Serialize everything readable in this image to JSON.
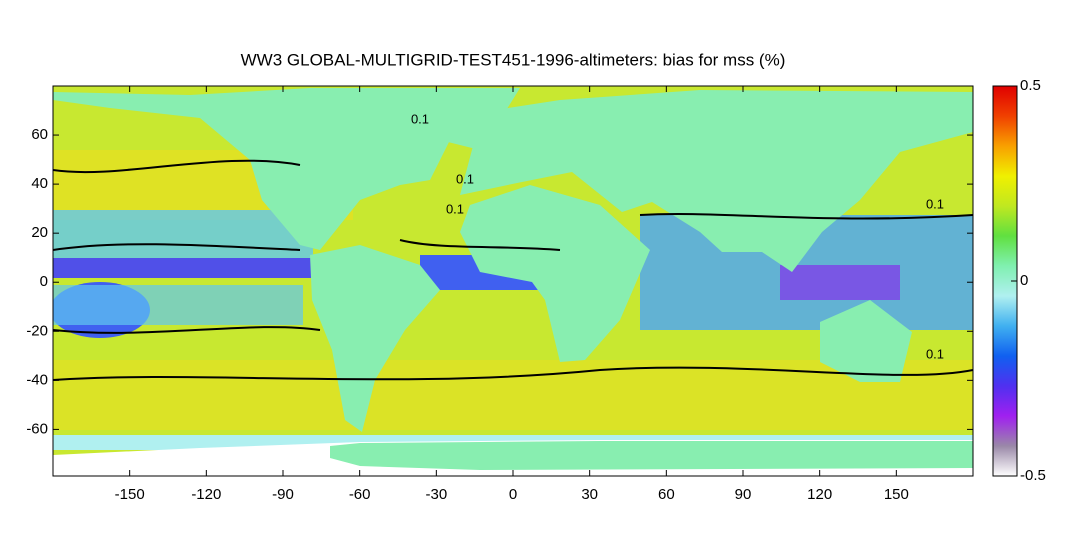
{
  "title": "WW3 GLOBAL-MULTIGRID-TEST451-1996-altimeters: bias for mss (%)",
  "map": {
    "xlim": [
      -180,
      180
    ],
    "ylim": [
      -79,
      80
    ],
    "xticks": [
      -150,
      -120,
      -90,
      -60,
      -30,
      0,
      30,
      60,
      90,
      120,
      150
    ],
    "yticks": [
      -60,
      -40,
      -20,
      0,
      20,
      40,
      60
    ],
    "contour_labels": [
      "0.1",
      "0.1",
      "0.1",
      "0.1",
      "0.1"
    ]
  },
  "colorbar": {
    "lim": [
      -0.5,
      0.5
    ],
    "ticks": [
      -0.5,
      0,
      0.5
    ],
    "colormap": [
      "#ffffff",
      "#9a88a8",
      "#a020f0",
      "#5030f0",
      "#1060f0",
      "#40b0f0",
      "#b0f0f0",
      "#80f0b0",
      "#60e040",
      "#c0e820",
      "#f0f000",
      "#f8a000",
      "#f04000",
      "#e00000"
    ]
  }
}
